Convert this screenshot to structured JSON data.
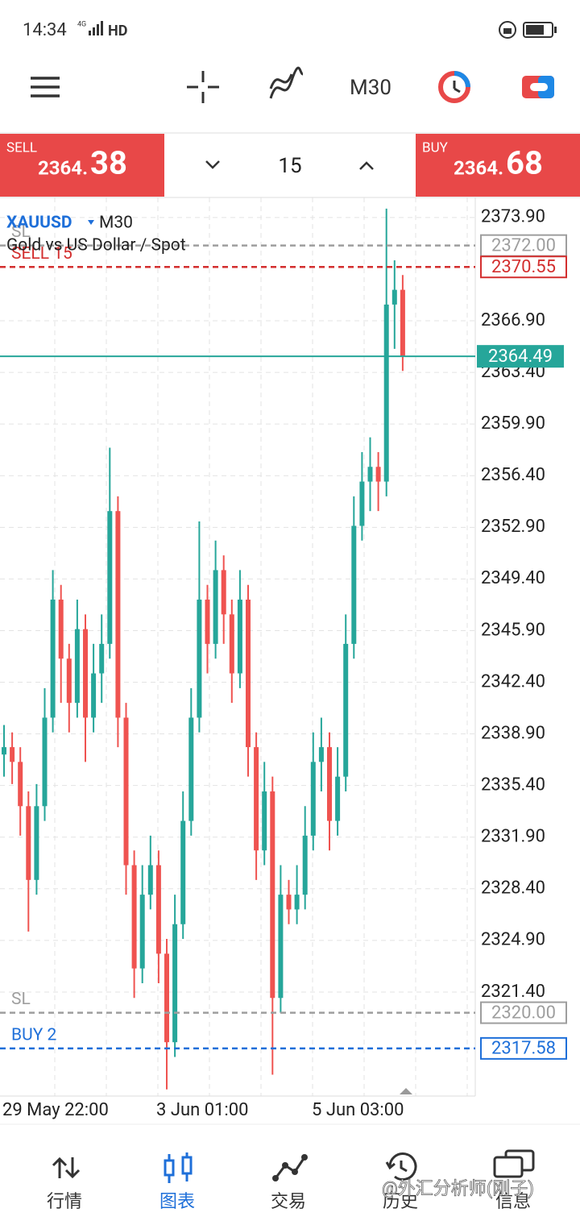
{
  "status_bar": {
    "time": "14:34",
    "network": "4G",
    "hd": "HD"
  },
  "toolbar": {
    "timeframe": "M30"
  },
  "trade_bar": {
    "sell": {
      "label": "SELL",
      "price_main": "2364.",
      "price_big": "38"
    },
    "volume": "15",
    "buy": {
      "label": "BUY",
      "price_main": "2364.",
      "price_big": "68"
    }
  },
  "chart_data": {
    "type": "candlestick",
    "symbol": "XAUUSD",
    "timeframe": "M30",
    "title": "Gold vs US Dollar / Spot",
    "ylim": [
      2314.35,
      2375.26
    ],
    "yticks": [
      {
        "value": 2373.9,
        "label": "2373.90"
      },
      {
        "value": 2366.9,
        "label": "2366.90"
      },
      {
        "value": 2363.4,
        "label": "2363.40"
      },
      {
        "value": 2359.9,
        "label": "2359.90"
      },
      {
        "value": 2356.4,
        "label": "2356.40"
      },
      {
        "value": 2352.9,
        "label": "2352.90"
      },
      {
        "value": 2349.4,
        "label": "2349.40"
      },
      {
        "value": 2345.9,
        "label": "2345.90"
      },
      {
        "value": 2342.4,
        "label": "2342.40"
      },
      {
        "value": 2338.9,
        "label": "2338.90"
      },
      {
        "value": 2335.4,
        "label": "2335.40"
      },
      {
        "value": 2331.9,
        "label": "2331.90"
      },
      {
        "value": 2328.4,
        "label": "2328.40"
      },
      {
        "value": 2324.9,
        "label": "2324.90"
      },
      {
        "value": 2321.4,
        "label": "2321.40"
      }
    ],
    "xlabels": [
      "29 May 22:00",
      "3 Jun 01:00",
      "5 Jun 03:00"
    ],
    "grid": true,
    "up_color": "#26a69a",
    "down_color": "#ef5350",
    "open": [
      2337.5,
      2338,
      2337,
      2334,
      2329,
      2334,
      2340,
      2348,
      2344,
      2341,
      2346,
      2340,
      2343,
      2345,
      2354,
      2340,
      2330,
      2323,
      2328,
      2330,
      2324,
      2318,
      2326,
      2333,
      2340,
      2348,
      2345,
      2350,
      2347,
      2343,
      2348,
      2338,
      2331,
      2335,
      2321,
      2328,
      2327,
      2328,
      2332,
      2337,
      2338,
      2333,
      2336,
      2345,
      2353,
      2356,
      2357,
      2356,
      2368,
      2369
    ],
    "high": [
      2339.5,
      2339,
      2338,
      2335,
      2335.5,
      2342,
      2350,
      2349,
      2345,
      2348,
      2347,
      2345,
      2347,
      2358.3,
      2355,
      2341,
      2331,
      2330,
      2332,
      2331,
      2325,
      2328,
      2335,
      2342,
      2353.3,
      2349,
      2352,
      2351,
      2348,
      2350,
      2349,
      2339,
      2337,
      2336,
      2330,
      2329,
      2330,
      2334,
      2339,
      2340,
      2339,
      2338,
      2347,
      2355,
      2358,
      2359,
      2358,
      2374.5,
      2371,
      2370
    ],
    "low": [
      2336,
      2335.5,
      2332,
      2325.5,
      2328,
      2333,
      2339,
      2341,
      2339,
      2340,
      2337,
      2339,
      2341,
      2344,
      2338,
      2328,
      2321,
      2322,
      2327,
      2322,
      2314.8,
      2317,
      2325,
      2332,
      2339,
      2343,
      2344,
      2345,
      2341,
      2342,
      2336,
      2329,
      2330,
      2315.8,
      2320,
      2326,
      2326,
      2327,
      2331,
      2335,
      2331,
      2332,
      2335,
      2344,
      2352,
      2354,
      2354,
      2355,
      2365,
      2363.5
    ],
    "close": [
      2338,
      2337,
      2334,
      2329,
      2334,
      2340,
      2348,
      2344,
      2341,
      2346,
      2340,
      2343,
      2345,
      2354,
      2340,
      2330,
      2323,
      2328,
      2330,
      2324,
      2318,
      2326,
      2333,
      2340,
      2348,
      2345,
      2350,
      2347,
      2343,
      2348,
      2338,
      2331,
      2335,
      2321,
      2328,
      2327,
      2328,
      2332,
      2337,
      2338,
      2333,
      2336,
      2345,
      2353,
      2356,
      2357,
      2356,
      2368,
      2369,
      2364.49
    ],
    "current_price": 2364.49,
    "current_color": "#26a69a",
    "levels": [
      {
        "label": "SL",
        "price": {
          "value": 2372,
          "label": "2372.00"
        },
        "color": "#9e9e9e"
      },
      {
        "label": "SELL 15",
        "price": {
          "value": 2370.55,
          "label": "2370.55"
        },
        "color": "#d32f2f"
      },
      {
        "label": "SL",
        "price": {
          "value": 2320,
          "label": "2320.00"
        },
        "color": "#9e9e9e"
      },
      {
        "label": "BUY 2",
        "price": {
          "value": 2317.58,
          "label": "2317.58"
        },
        "color": "#1e6fd9"
      }
    ]
  },
  "nav": [
    "行情",
    "图表",
    "交易",
    "历史",
    "信息"
  ],
  "watermark": "@外汇分析师(刚子)"
}
